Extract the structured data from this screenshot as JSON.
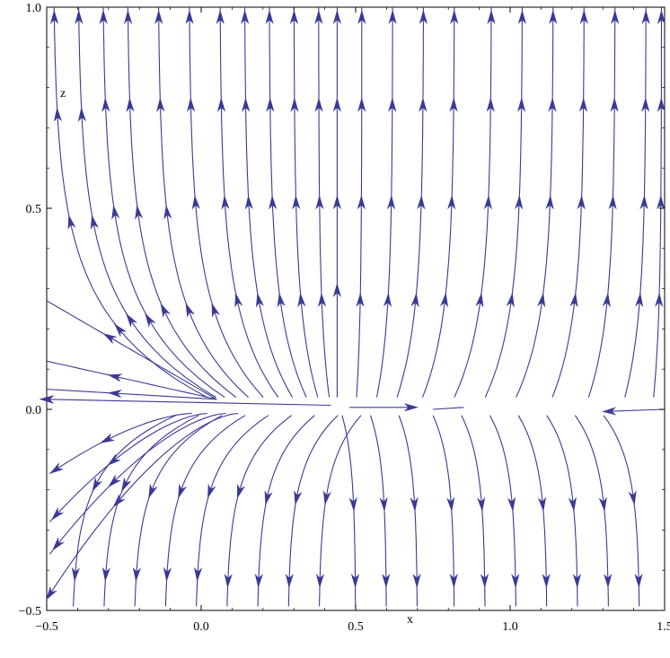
{
  "chart_data": {
    "type": "streamplot",
    "xlabel": "x",
    "ylabel": "z",
    "xlim": [
      -0.5,
      1.5
    ],
    "ylim": [
      -0.5,
      1.0
    ],
    "x_ticks": [
      {
        "value": -0.5,
        "label": "−0.5"
      },
      {
        "value": 0.0,
        "label": "0.0"
      },
      {
        "value": 0.5,
        "label": "0.5"
      },
      {
        "value": 1.0,
        "label": "1.0"
      },
      {
        "value": 1.5,
        "label": "1.5"
      }
    ],
    "y_ticks": [
      {
        "value": -0.5,
        "label": "−0.5"
      },
      {
        "value": 0.0,
        "label": "0.0"
      },
      {
        "value": 0.5,
        "label": "0.5"
      },
      {
        "value": 1.0,
        "label": "1.0"
      }
    ],
    "stream_color": "#3a3a96",
    "field": "streamlines diverge from the z = 0 axis: upward above it, downward below it, with horizontal flow along z = 0 away from x ≈ 0.45 and converging toward x ≈ 1.5",
    "lower_seeds": [
      -0.42,
      -0.32,
      -0.22,
      -0.12,
      -0.02,
      0.08,
      0.18,
      0.28,
      0.38,
      0.5,
      0.6,
      0.7,
      0.82,
      0.92,
      1.02,
      1.12,
      1.22,
      1.32,
      1.42
    ]
  }
}
